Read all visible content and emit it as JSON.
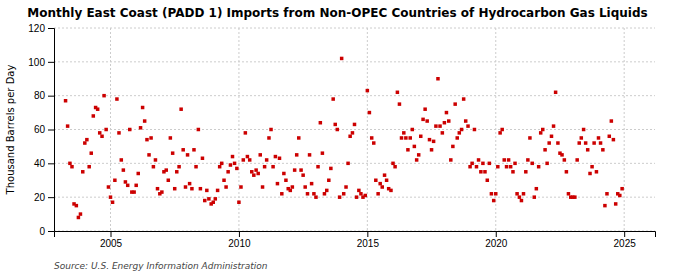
{
  "chart_data": {
    "type": "scatter",
    "title": "Monthly East Coast (PADD 1) Imports from Non-OPEC Countries of Hydrocarbon Gas Liquids",
    "y_label": "Thousand Barrels per Day",
    "annotations": [
      "Source: U.S. Energy Information Administration"
    ],
    "color": "#cc0000",
    "marker": "square",
    "grid": true,
    "xlim": [
      2002.8,
      2026.2
    ],
    "xticks": [
      2005,
      2010,
      2015,
      2020,
      2025
    ],
    "ylim": [
      0,
      120
    ],
    "yticks": [
      0,
      20,
      40,
      60,
      80,
      100,
      120
    ],
    "x": [
      2003.25,
      2003.33,
      2003.42,
      2003.5,
      2003.58,
      2003.67,
      2003.75,
      2003.83,
      2003.92,
      2004.0,
      2004.08,
      2004.17,
      2004.25,
      2004.33,
      2004.42,
      2004.5,
      2004.58,
      2004.67,
      2004.75,
      2004.83,
      2004.92,
      2005.0,
      2005.08,
      2005.17,
      2005.25,
      2005.33,
      2005.42,
      2005.5,
      2005.58,
      2005.67,
      2005.75,
      2005.83,
      2005.92,
      2006.0,
      2006.08,
      2006.17,
      2006.25,
      2006.33,
      2006.42,
      2006.5,
      2006.58,
      2006.67,
      2006.75,
      2006.83,
      2006.92,
      2007.0,
      2007.08,
      2007.17,
      2007.25,
      2007.33,
      2007.42,
      2007.5,
      2007.58,
      2007.67,
      2007.75,
      2007.83,
      2007.92,
      2008.0,
      2008.08,
      2008.17,
      2008.25,
      2008.33,
      2008.42,
      2008.5,
      2008.58,
      2008.67,
      2008.75,
      2008.83,
      2008.92,
      2009.0,
      2009.08,
      2009.17,
      2009.25,
      2009.33,
      2009.42,
      2009.5,
      2009.58,
      2009.67,
      2009.75,
      2009.83,
      2009.92,
      2010.0,
      2010.08,
      2010.17,
      2010.25,
      2010.33,
      2010.42,
      2010.5,
      2010.58,
      2010.67,
      2010.75,
      2010.83,
      2010.92,
      2011.0,
      2011.08,
      2011.17,
      2011.25,
      2011.33,
      2011.42,
      2011.5,
      2011.58,
      2011.67,
      2011.75,
      2011.83,
      2011.92,
      2012.0,
      2012.08,
      2012.17,
      2012.25,
      2012.33,
      2012.42,
      2012.5,
      2012.58,
      2012.67,
      2012.75,
      2012.83,
      2012.92,
      2013.0,
      2013.08,
      2013.17,
      2013.25,
      2013.33,
      2013.42,
      2013.5,
      2013.58,
      2013.67,
      2013.75,
      2013.83,
      2013.92,
      2014.0,
      2014.08,
      2014.17,
      2014.25,
      2014.33,
      2014.42,
      2014.5,
      2014.58,
      2014.67,
      2014.75,
      2014.83,
      2014.92,
      2015.0,
      2015.08,
      2015.17,
      2015.25,
      2015.33,
      2015.42,
      2015.5,
      2015.58,
      2015.67,
      2015.75,
      2015.83,
      2015.92,
      2016.0,
      2016.08,
      2016.17,
      2016.25,
      2016.33,
      2016.42,
      2016.5,
      2016.58,
      2016.67,
      2016.75,
      2016.83,
      2016.92,
      2017.0,
      2017.08,
      2017.17,
      2017.25,
      2017.33,
      2017.42,
      2017.5,
      2017.58,
      2017.67,
      2017.75,
      2017.83,
      2017.92,
      2018.0,
      2018.08,
      2018.17,
      2018.25,
      2018.33,
      2018.42,
      2018.5,
      2018.58,
      2018.67,
      2018.75,
      2018.83,
      2018.92,
      2019.0,
      2019.08,
      2019.17,
      2019.25,
      2019.33,
      2019.42,
      2019.5,
      2019.58,
      2019.67,
      2019.75,
      2019.83,
      2019.92,
      2020.0,
      2020.08,
      2020.17,
      2020.25,
      2020.33,
      2020.42,
      2020.5,
      2020.58,
      2020.67,
      2020.75,
      2020.83,
      2020.92,
      2021.0,
      2021.08,
      2021.17,
      2021.25,
      2021.33,
      2021.42,
      2021.5,
      2021.58,
      2021.67,
      2021.75,
      2021.83,
      2021.92,
      2022.0,
      2022.08,
      2022.17,
      2022.25,
      2022.33,
      2022.42,
      2022.5,
      2022.58,
      2022.67,
      2022.75,
      2022.83,
      2022.92,
      2023.0,
      2023.08,
      2023.17,
      2023.25,
      2023.33,
      2023.42,
      2023.5,
      2023.58,
      2023.67,
      2023.75,
      2023.83,
      2023.92,
      2024.0,
      2024.08,
      2024.17,
      2024.25,
      2024.33,
      2024.42,
      2024.5,
      2024.58,
      2024.67,
      2024.75,
      2024.83,
      2024.92
    ],
    "values": [
      77,
      62,
      40,
      38,
      16,
      15,
      8,
      10,
      35,
      52,
      54,
      38,
      46,
      68,
      73,
      72,
      58,
      56,
      80,
      60,
      26,
      20,
      17,
      30,
      78,
      58,
      42,
      36,
      29,
      27,
      60,
      23,
      23,
      27,
      34,
      61,
      73,
      65,
      54,
      45,
      55,
      38,
      42,
      25,
      22,
      23,
      35,
      36,
      30,
      55,
      46,
      25,
      35,
      38,
      72,
      48,
      26,
      45,
      28,
      25,
      48,
      38,
      60,
      25,
      43,
      18,
      24,
      19,
      16,
      17,
      19,
      24,
      38,
      40,
      30,
      26,
      35,
      39,
      44,
      40,
      37,
      17,
      26,
      42,
      58,
      44,
      42,
      35,
      33,
      36,
      34,
      45,
      26,
      38,
      42,
      55,
      60,
      38,
      44,
      28,
      43,
      22,
      34,
      30,
      25,
      24,
      26,
      36,
      45,
      55,
      36,
      33,
      26,
      22,
      45,
      28,
      22,
      20,
      38,
      64,
      46,
      22,
      24,
      30,
      37,
      78,
      63,
      60,
      20,
      102,
      22,
      26,
      40,
      56,
      58,
      63,
      20,
      24,
      22,
      20,
      21,
      83,
      70,
      55,
      52,
      30,
      22,
      28,
      26,
      33,
      30,
      25,
      24,
      40,
      38,
      82,
      75,
      55,
      58,
      55,
      48,
      55,
      60,
      50,
      42,
      45,
      56,
      66,
      72,
      65,
      54,
      48,
      53,
      62,
      90,
      62,
      58,
      64,
      70,
      65,
      42,
      50,
      75,
      55,
      58,
      60,
      78,
      65,
      62,
      38,
      40,
      60,
      38,
      42,
      35,
      40,
      35,
      30,
      40,
      22,
      18,
      22,
      38,
      58,
      60,
      42,
      38,
      42,
      38,
      35,
      40,
      22,
      20,
      18,
      22,
      35,
      42,
      55,
      40,
      20,
      25,
      38,
      58,
      60,
      48,
      40,
      52,
      56,
      62,
      82,
      52,
      46,
      45,
      42,
      35,
      22,
      20,
      20,
      20,
      42,
      52,
      55,
      60,
      52,
      48,
      34,
      38,
      52,
      35,
      55,
      52,
      48,
      15,
      22,
      56,
      65,
      54,
      16,
      22,
      21,
      25
    ]
  }
}
